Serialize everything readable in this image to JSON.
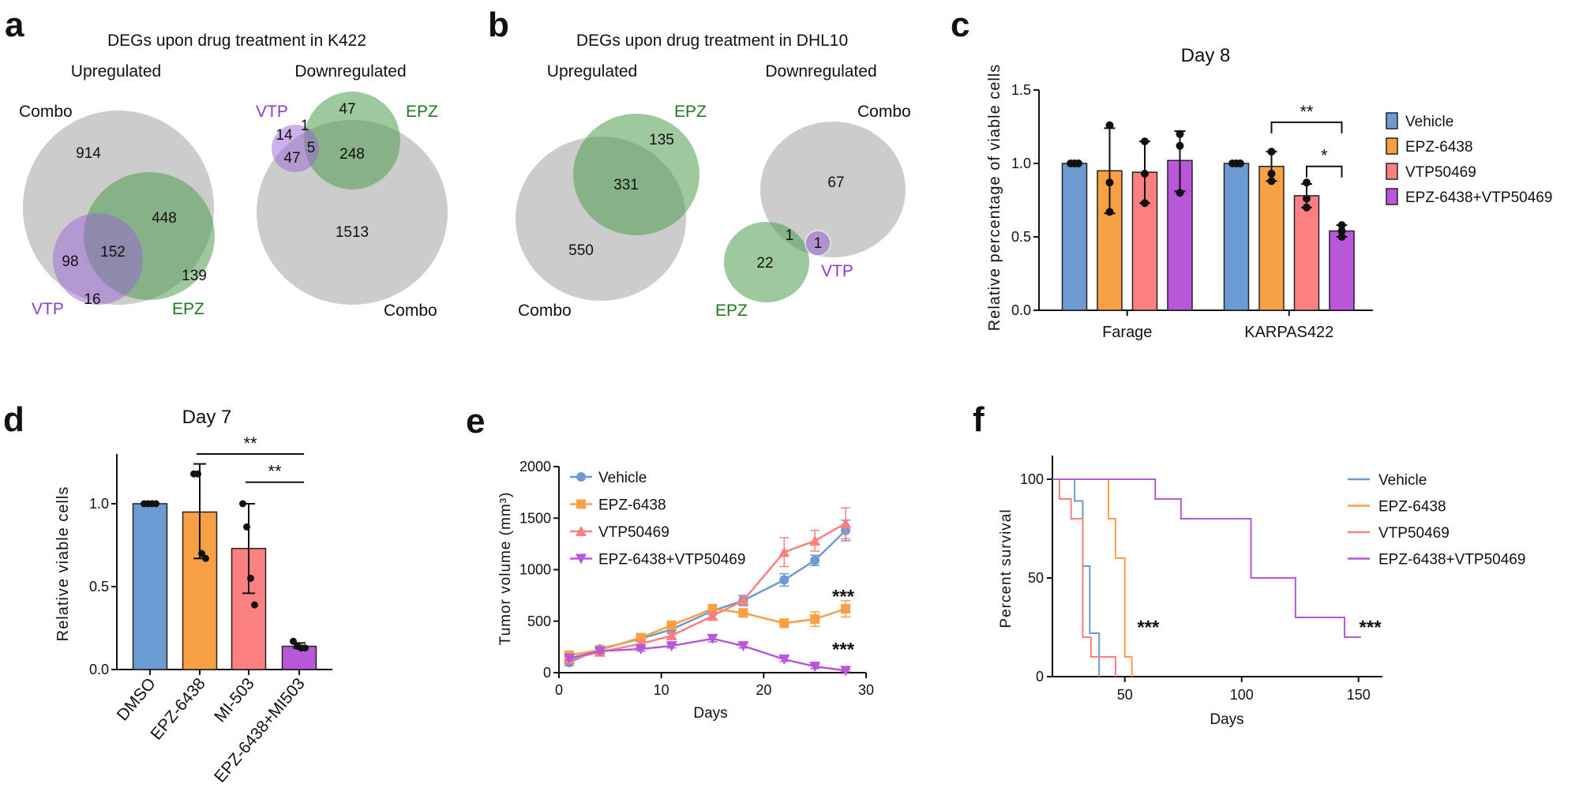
{
  "panels": {
    "a": {
      "letter": "a",
      "title": "DEGs upon drug treatment in K422",
      "up": {
        "heading": "Upregulated",
        "combo_label": "Combo",
        "vtp_label": "VTP",
        "epz_label": "EPZ",
        "counts": {
          "combo_only": "914",
          "combo_epz": "448",
          "all_three": "152",
          "combo_vtp": "98",
          "epz_only": "139",
          "vtp_only": "16"
        }
      },
      "down": {
        "heading": "Downregulated",
        "combo_label": "Combo",
        "vtp_label": "VTP",
        "epz_label": "EPZ",
        "counts": {
          "epz_only": "47",
          "vtp_epz": "1",
          "vtp_only": "14",
          "all_three": "5",
          "combo_vtp": "47",
          "combo_epz": "248",
          "combo_only": "1513"
        }
      }
    },
    "b": {
      "letter": "b",
      "title": "DEGs upon drug treatment in DHL10",
      "up": {
        "heading": "Upregulated",
        "combo_label": "Combo",
        "epz_label": "EPZ",
        "counts": {
          "epz_only": "135",
          "combo_epz": "331",
          "combo_only": "550"
        }
      },
      "down": {
        "heading": "Downregulated",
        "combo_label": "Combo",
        "vtp_label": "VTP",
        "epz_label": "EPZ",
        "counts": {
          "combo_only": "67",
          "combo_epz": "1",
          "combo_vtp": "1",
          "epz_only": "22"
        }
      }
    },
    "c": {
      "letter": "c"
    },
    "d": {
      "letter": "d"
    },
    "e": {
      "letter": "e"
    },
    "f": {
      "letter": "f"
    }
  },
  "colors": {
    "vehicle": "#6b9bd2",
    "epz": "#f7a044",
    "vtp": "#fd8080",
    "combo": "#b957d9",
    "venn_gray": "#c9c9c9",
    "venn_green": "#7fb77f",
    "venn_purple": "#b88fe3",
    "vtp_text": "#8a3bd0",
    "epz_text": "#1e7a1e"
  },
  "chart_data": [
    {
      "panel": "c",
      "type": "bar",
      "title": "Day 8",
      "xlabel": "",
      "ylabel": "Relative percentage of viable cells",
      "ylim": [
        0,
        1.5
      ],
      "yticks": [
        0,
        0.5,
        1.0,
        1.5
      ],
      "ytick_labels": [
        "0.0",
        "0.5",
        "1.0",
        "1.5"
      ],
      "categories": [
        "Farage",
        "KARPAS422"
      ],
      "legend": "right",
      "series": [
        {
          "name": "Vehicle",
          "color": "#6b9bd2",
          "values": [
            1.0,
            1.0
          ],
          "error": [
            [
              1.0,
              1.0
            ],
            [
              1.0,
              1.0
            ]
          ],
          "points": [
            [
              1.0,
              1.0,
              1.0
            ],
            [
              1.0,
              1.0,
              1.0
            ]
          ]
        },
        {
          "name": "EPZ-6438",
          "color": "#f7a044",
          "values": [
            0.95,
            0.98
          ],
          "error": [
            [
              0.66,
              1.24
            ],
            [
              0.88,
              1.08
            ]
          ],
          "points": [
            [
              1.26,
              0.87,
              0.67
            ],
            [
              1.08,
              0.93,
              0.88
            ]
          ]
        },
        {
          "name": "VTP50469",
          "color": "#fd8080",
          "values": [
            0.94,
            0.78
          ],
          "error": [
            [
              0.73,
              1.15
            ],
            [
              0.7,
              0.86
            ]
          ],
          "points": [
            [
              1.15,
              0.93,
              0.73
            ],
            [
              0.87,
              0.76,
              0.7
            ]
          ]
        },
        {
          "name": "EPZ-6438+VTP50469",
          "color": "#b957d9",
          "values": [
            1.02,
            0.54
          ],
          "error": [
            [
              0.81,
              1.22
            ],
            [
              0.5,
              0.58
            ]
          ],
          "points": [
            [
              1.2,
              1.12,
              0.8
            ],
            [
              0.58,
              0.54,
              0.5
            ]
          ]
        }
      ],
      "significance": [
        {
          "category": "KARPAS422",
          "from": "EPZ-6438",
          "to": "EPZ-6438+VTP50469",
          "label": "**",
          "level": 1.28
        },
        {
          "category": "KARPAS422",
          "from": "VTP50469",
          "to": "EPZ-6438+VTP50469",
          "label": "*",
          "level": 0.98
        }
      ]
    },
    {
      "panel": "d",
      "type": "bar",
      "title": "Day 7",
      "xlabel": "",
      "ylabel": "Relative viable cells",
      "ylim": [
        0,
        1.3
      ],
      "yticks": [
        0,
        0.5,
        1.0
      ],
      "ytick_labels": [
        "0.0",
        "0.5",
        "1.0"
      ],
      "categories": [
        "DMSO",
        "EPZ-6438",
        "MI-503",
        "EPZ-6438+MI503"
      ],
      "colors": [
        "#6b9bd2",
        "#f7a044",
        "#fd8080",
        "#b957d9"
      ],
      "values": [
        1.0,
        0.95,
        0.73,
        0.14
      ],
      "error": [
        [
          1.0,
          1.0
        ],
        [
          0.67,
          1.24
        ],
        [
          0.46,
          1.0
        ],
        [
          0.13,
          0.16
        ]
      ],
      "points": [
        [
          1.0,
          1.0,
          1.0,
          1.0
        ],
        [
          1.18,
          1.18,
          0.7,
          0.67
        ],
        [
          1.0,
          0.86,
          0.55,
          0.39
        ],
        [
          0.17,
          0.14,
          0.13,
          0.13
        ]
      ],
      "significance": [
        {
          "from": "EPZ-6438",
          "to": "EPZ-6438+MI503",
          "label": "**",
          "level": 1.3
        },
        {
          "from": "MI-503",
          "to": "EPZ-6438+MI503",
          "label": "**",
          "level": 1.13
        }
      ]
    },
    {
      "panel": "e",
      "type": "line",
      "title": "",
      "xlabel": "Days",
      "ylabel": "Tumor volume (mm³)",
      "xlim": [
        0,
        30
      ],
      "xticks": [
        0,
        10,
        20,
        30
      ],
      "ylim": [
        0,
        2000
      ],
      "yticks": [
        0,
        500,
        1000,
        1500,
        2000
      ],
      "legend": "top-left",
      "x": [
        1,
        4,
        8,
        11,
        15,
        18,
        22,
        25,
        28
      ],
      "series": [
        {
          "name": "Vehicle",
          "color": "#6b9bd2",
          "marker": "circle",
          "values": [
            100,
            230,
            330,
            420,
            600,
            700,
            900,
            1090,
            1380
          ],
          "error": [
            30,
            30,
            30,
            40,
            40,
            50,
            60,
            50,
            100
          ]
        },
        {
          "name": "EPZ-6438",
          "color": "#f7a044",
          "marker": "square",
          "values": [
            170,
            220,
            340,
            460,
            620,
            580,
            480,
            520,
            620
          ],
          "error": [
            20,
            20,
            30,
            30,
            40,
            40,
            40,
            70,
            80
          ]
        },
        {
          "name": "VTP50469",
          "color": "#fd8080",
          "marker": "triangle-up",
          "values": [
            130,
            200,
            280,
            360,
            550,
            700,
            1170,
            1280,
            1450
          ],
          "error": [
            20,
            30,
            30,
            30,
            40,
            40,
            140,
            100,
            150
          ]
        },
        {
          "name": "EPZ-6438+VTP50469",
          "color": "#b957d9",
          "marker": "triangle-down",
          "values": [
            140,
            210,
            230,
            260,
            330,
            260,
            130,
            60,
            20
          ],
          "error": [
            20,
            20,
            20,
            20,
            30,
            20,
            20,
            20,
            10
          ]
        }
      ],
      "annotations": [
        {
          "text": "***",
          "day": 28,
          "value": 600
        },
        {
          "text": "***",
          "day": 28,
          "value": 90
        }
      ]
    },
    {
      "panel": "f",
      "type": "line",
      "subtype": "kaplan-meier",
      "title": "",
      "xlabel": "Days",
      "ylabel": "Percent survival",
      "xlim": [
        19,
        160
      ],
      "xticks": [
        50,
        100,
        150
      ],
      "ylim": [
        0,
        100
      ],
      "yticks": [
        0,
        50,
        100
      ],
      "legend": "right",
      "series": [
        {
          "name": "Vehicle",
          "color": "#6b9bd2",
          "start": 19,
          "steps": [
            [
              28.5,
              89
            ],
            [
              32,
              56
            ],
            [
              35,
              22
            ],
            [
              39,
              0
            ]
          ]
        },
        {
          "name": "EPZ-6438",
          "color": "#f7a044",
          "start": 19,
          "steps": [
            [
              43,
              80
            ],
            [
              46,
              60
            ],
            [
              50,
              10
            ],
            [
              53,
              0
            ]
          ]
        },
        {
          "name": "VTP50469",
          "color": "#fd8080",
          "start": 19,
          "steps": [
            [
              22,
              90
            ],
            [
              27,
              80
            ],
            [
              32,
              20
            ],
            [
              35.5,
              10
            ],
            [
              46,
              0
            ]
          ]
        },
        {
          "name": "EPZ-6438+VTP50469",
          "color": "#b957d9",
          "start": 19,
          "steps": [
            [
              63,
              90
            ],
            [
              74,
              80
            ],
            [
              104,
              50
            ],
            [
              123,
              30
            ],
            [
              144,
              20
            ]
          ],
          "end": 151
        }
      ],
      "annotations": [
        {
          "text": "***",
          "day": 60,
          "value": 25
        },
        {
          "text": "***",
          "day": 155,
          "value": 25
        }
      ]
    }
  ]
}
